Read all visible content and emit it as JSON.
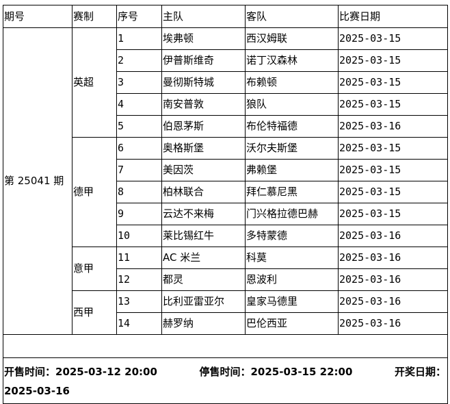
{
  "headers": {
    "period": "期号",
    "league": "赛制",
    "no": "序号",
    "home": "主队",
    "away": "客队",
    "date": "比赛日期"
  },
  "period": "第 25041 期",
  "groups": [
    {
      "league": "英超",
      "matches": [
        {
          "no": "1",
          "home": "埃弗顿",
          "away": "西汉姆联",
          "date": "2025-03-15"
        },
        {
          "no": "2",
          "home": "伊普斯维奇",
          "away": "诺丁汉森林",
          "date": "2025-03-15"
        },
        {
          "no": "3",
          "home": "曼彻斯特城",
          "away": "布赖顿",
          "date": "2025-03-15"
        },
        {
          "no": "4",
          "home": "南安普敦",
          "away": "狼队",
          "date": "2025-03-15"
        },
        {
          "no": "5",
          "home": "伯恩茅斯",
          "away": "布伦特福德",
          "date": "2025-03-16"
        }
      ]
    },
    {
      "league": "德甲",
      "matches": [
        {
          "no": "6",
          "home": "奥格斯堡",
          "away": "沃尔夫斯堡",
          "date": "2025-03-15"
        },
        {
          "no": "7",
          "home": "美因茨",
          "away": "弗赖堡",
          "date": "2025-03-15"
        },
        {
          "no": "8",
          "home": "柏林联合",
          "away": "拜仁慕尼黑",
          "date": "2025-03-15"
        },
        {
          "no": "9",
          "home": "云达不来梅",
          "away": "门兴格拉德巴赫",
          "date": "2025-03-15"
        },
        {
          "no": "10",
          "home": "莱比锡红牛",
          "away": "多特蒙德",
          "date": "2025-03-16"
        }
      ]
    },
    {
      "league": "意甲",
      "matches": [
        {
          "no": "11",
          "home": "AC 米兰",
          "away": "科莫",
          "date": "2025-03-16"
        },
        {
          "no": "12",
          "home": "都灵",
          "away": "恩波利",
          "date": "2025-03-16"
        }
      ]
    },
    {
      "league": "西甲",
      "matches": [
        {
          "no": "13",
          "home": "比利亚雷亚尔",
          "away": "皇家马德里",
          "date": "2025-03-16"
        },
        {
          "no": "14",
          "home": "赫罗纳",
          "away": "巴伦西亚",
          "date": "2025-03-16"
        }
      ]
    }
  ],
  "footer": {
    "sale_start": "开售时间：2025-03-12 20:00",
    "sale_end": "停售时间：2025-03-15 22:00",
    "draw_label": "开奖日期：",
    "draw_date": "2025-03-16"
  }
}
